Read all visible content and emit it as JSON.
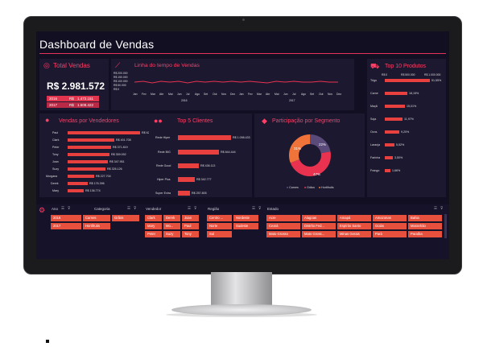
{
  "dashboard": {
    "title": "Dashboard de Vendas"
  },
  "total": {
    "title": "Total Vendas",
    "value": "R$ 2.981.572",
    "rows": [
      {
        "year": "2016",
        "currency": "R$",
        "value": "1.472.151"
      },
      {
        "year": "2017",
        "currency": "R$",
        "value": "1.509.422"
      }
    ]
  },
  "timeline": {
    "title": "Linha do tempo de Vendas",
    "yticks": [
      "R$ 200.000",
      "R$ 150.000",
      "R$ 100.000",
      "R$ 50.000",
      "R$ 0"
    ],
    "months": [
      "Jan",
      "Fev",
      "Mar",
      "Abr",
      "Mai",
      "Jun",
      "Jul",
      "Ago",
      "Set",
      "Out",
      "Nov",
      "Dez",
      "Jan",
      "Fev",
      "Mar",
      "Abr",
      "Mai",
      "Jun",
      "Jul",
      "Ago",
      "Set",
      "Out",
      "Nov",
      "Dez"
    ],
    "years": [
      "2016",
      "2017"
    ]
  },
  "top10": {
    "title": "Top 10 Produtos",
    "axis": [
      "R$ 0",
      "R$ 500.000",
      "R$ 1.000.000"
    ],
    "items": [
      {
        "name": "Trigo",
        "pct": "51,55%"
      },
      {
        "name": "Carne",
        "pct": "18,15%"
      },
      {
        "name": "Maçã",
        "pct": "15,01%"
      },
      {
        "name": "Soja",
        "pct": "11,97%"
      },
      {
        "name": "Ovos",
        "pct": "9,20%"
      },
      {
        "name": "Laranja",
        "pct": "5,52%"
      },
      {
        "name": "Farinha",
        "pct": "3,50%"
      },
      {
        "name": "Frango",
        "pct": "1,66%"
      }
    ]
  },
  "sellers": {
    "title": "Vendas por Vendedores",
    "items": [
      {
        "name": "Paul",
        "value": "R$ 623.958"
      },
      {
        "name": "Clark",
        "value": "R$ 401.708"
      },
      {
        "name": "Peter",
        "value": "R$ 371.819"
      },
      {
        "name": "Tony",
        "value": "R$ 359.092"
      },
      {
        "name": "Joan",
        "value": "R$ 347.951"
      },
      {
        "name": "Suzy",
        "value": "R$ 326.126"
      },
      {
        "name": "Morgana",
        "value": "R$ 227.704"
      },
      {
        "name": "Derek",
        "value": "R$ 176.396"
      },
      {
        "name": "Mary",
        "value": "R$ 136.774"
      }
    ]
  },
  "top5": {
    "title": "Top 5 Clientes",
    "items": [
      {
        "name": "Rede Hiper",
        "value": "R$ 1.098.433"
      },
      {
        "name": "Rede BIG",
        "value": "R$ 844.444"
      },
      {
        "name": "Rede Good",
        "value": "R$ 436.113"
      },
      {
        "name": "Hiper Plus",
        "value": "R$ 342.777"
      },
      {
        "name": "Super Extra",
        "value": "R$ 257.805"
      }
    ]
  },
  "segment": {
    "title": "Participação por Segmento",
    "slices": [
      {
        "name": "Carnes",
        "pct": "22%",
        "value": 22,
        "color": "#5a4a7a"
      },
      {
        "name": "Grãos",
        "pct": "47%",
        "value": 47,
        "color": "#e8324f"
      },
      {
        "name": "Hortifrutis",
        "pct": "31%",
        "value": 31,
        "color": "#f0743a"
      }
    ]
  },
  "slicers": {
    "ano": {
      "label": "Ano",
      "items": [
        "2016",
        "2017"
      ]
    },
    "categoria": {
      "label": "Categoria",
      "items": [
        "Carnes",
        "Grãos",
        "Hortifrutis"
      ]
    },
    "vendedor": {
      "label": "Vendedor",
      "items": [
        "Clark",
        "Derek",
        "Joan",
        "Mary",
        "Mo...",
        "Paul",
        "Peter",
        "Suzy",
        "Tony"
      ]
    },
    "regiao": {
      "label": "Região",
      "items": [
        "Centro ...",
        "Nordeste",
        "Norte",
        "Sudeste",
        "Sul"
      ]
    },
    "estado": {
      "label": "Estado",
      "items": [
        "Acre",
        "Alagoas",
        "Amapá",
        "Amazonas",
        "Bahia",
        "Ceará",
        "Distrito Fed...",
        "Espírito Santo",
        "Goiás",
        "Maranhão",
        "Mato Grosso",
        "Mato Gross...",
        "Minas Gerais",
        "Pará",
        "Paraíba"
      ]
    }
  },
  "colors": {
    "accent": "#e8325a",
    "bar": "#e8403e",
    "background": "#120f22",
    "panel": "#1c1830"
  }
}
